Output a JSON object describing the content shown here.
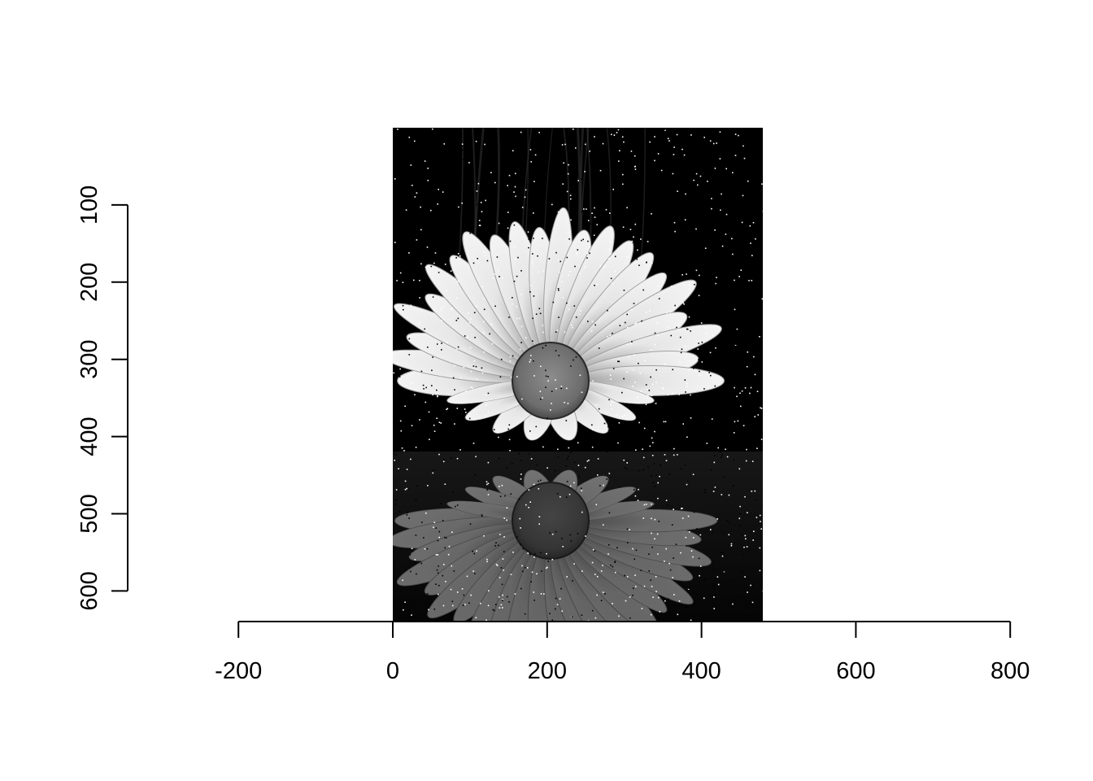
{
  "chart_data": {
    "type": "image",
    "title": "",
    "xlabel": "",
    "ylabel": "",
    "x_axis": {
      "ticks": [
        -200,
        0,
        200,
        400,
        600,
        800
      ],
      "tick_labels": [
        "-200",
        "0",
        "200",
        "400",
        "600",
        "800"
      ],
      "range": [
        -200,
        800
      ]
    },
    "y_axis": {
      "ticks": [
        100,
        200,
        300,
        400,
        500,
        600
      ],
      "tick_labels": [
        "100",
        "200",
        "300",
        "400",
        "500",
        "600"
      ],
      "range": [
        100,
        600
      ],
      "direction": "downward",
      "label_orientation": "rotated"
    },
    "image": {
      "description_name": "grayscale-daisy-with-reflection-salt-and-pepper-noise",
      "x_extent": [
        0,
        480
      ],
      "y_extent": [
        0,
        640
      ]
    },
    "grid": false,
    "box": false,
    "colors": {
      "background": "#ffffff",
      "axis": "#000000",
      "image_background": "#000000",
      "petal": "#dcdcdc",
      "disc": "#7a7a7a"
    }
  }
}
